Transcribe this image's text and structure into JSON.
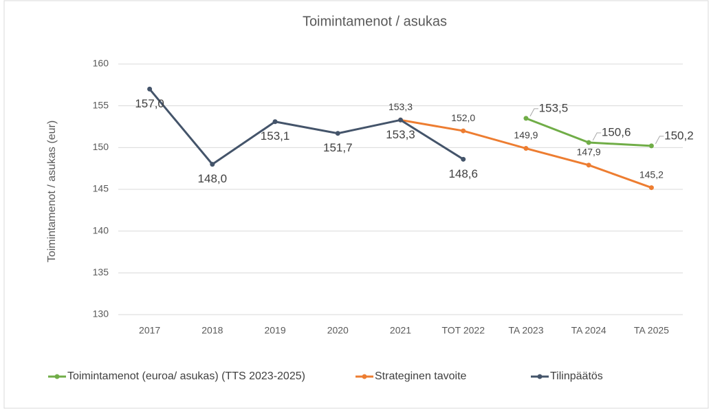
{
  "chart_data": {
    "type": "line",
    "title": "Toimintamenot / asukas",
    "y_label": "Toimintamenot  / asukas (eur)",
    "categories": [
      "2017",
      "2018",
      "2019",
      "2020",
      "2021",
      "TOT 2022",
      "TA 2023",
      "TA 2024",
      "TA 2025"
    ],
    "series": [
      {
        "name": "Toimintamenot (euroa/ asukas) (TTS 2023-2025)",
        "color": "#70ad47",
        "values": [
          null,
          null,
          null,
          null,
          null,
          null,
          153.5,
          150.6,
          150.2
        ],
        "value_labels": [
          null,
          null,
          null,
          null,
          null,
          null,
          "153,5",
          "150,6",
          "150,2"
        ]
      },
      {
        "name": "Strateginen tavoite",
        "color": "#ed7d31",
        "values": [
          null,
          null,
          null,
          null,
          153.3,
          152.0,
          149.9,
          147.9,
          145.2
        ],
        "value_labels": [
          null,
          null,
          null,
          null,
          "153,3",
          "152,0",
          "149,9",
          "147,9",
          "145,2"
        ]
      },
      {
        "name": "Tilinpäätös",
        "color": "#44546a",
        "values": [
          157.0,
          148.0,
          153.1,
          151.7,
          153.3,
          148.6,
          null,
          null,
          null
        ],
        "value_labels": [
          "157,0",
          "148,0",
          "153,1",
          "151,7",
          "153,3",
          "148,6",
          null,
          null,
          null
        ]
      }
    ],
    "ylim": [
      130,
      160
    ],
    "yticks": [
      130,
      135,
      140,
      145,
      150,
      155,
      160
    ],
    "grid": true,
    "legend": "bottom"
  }
}
